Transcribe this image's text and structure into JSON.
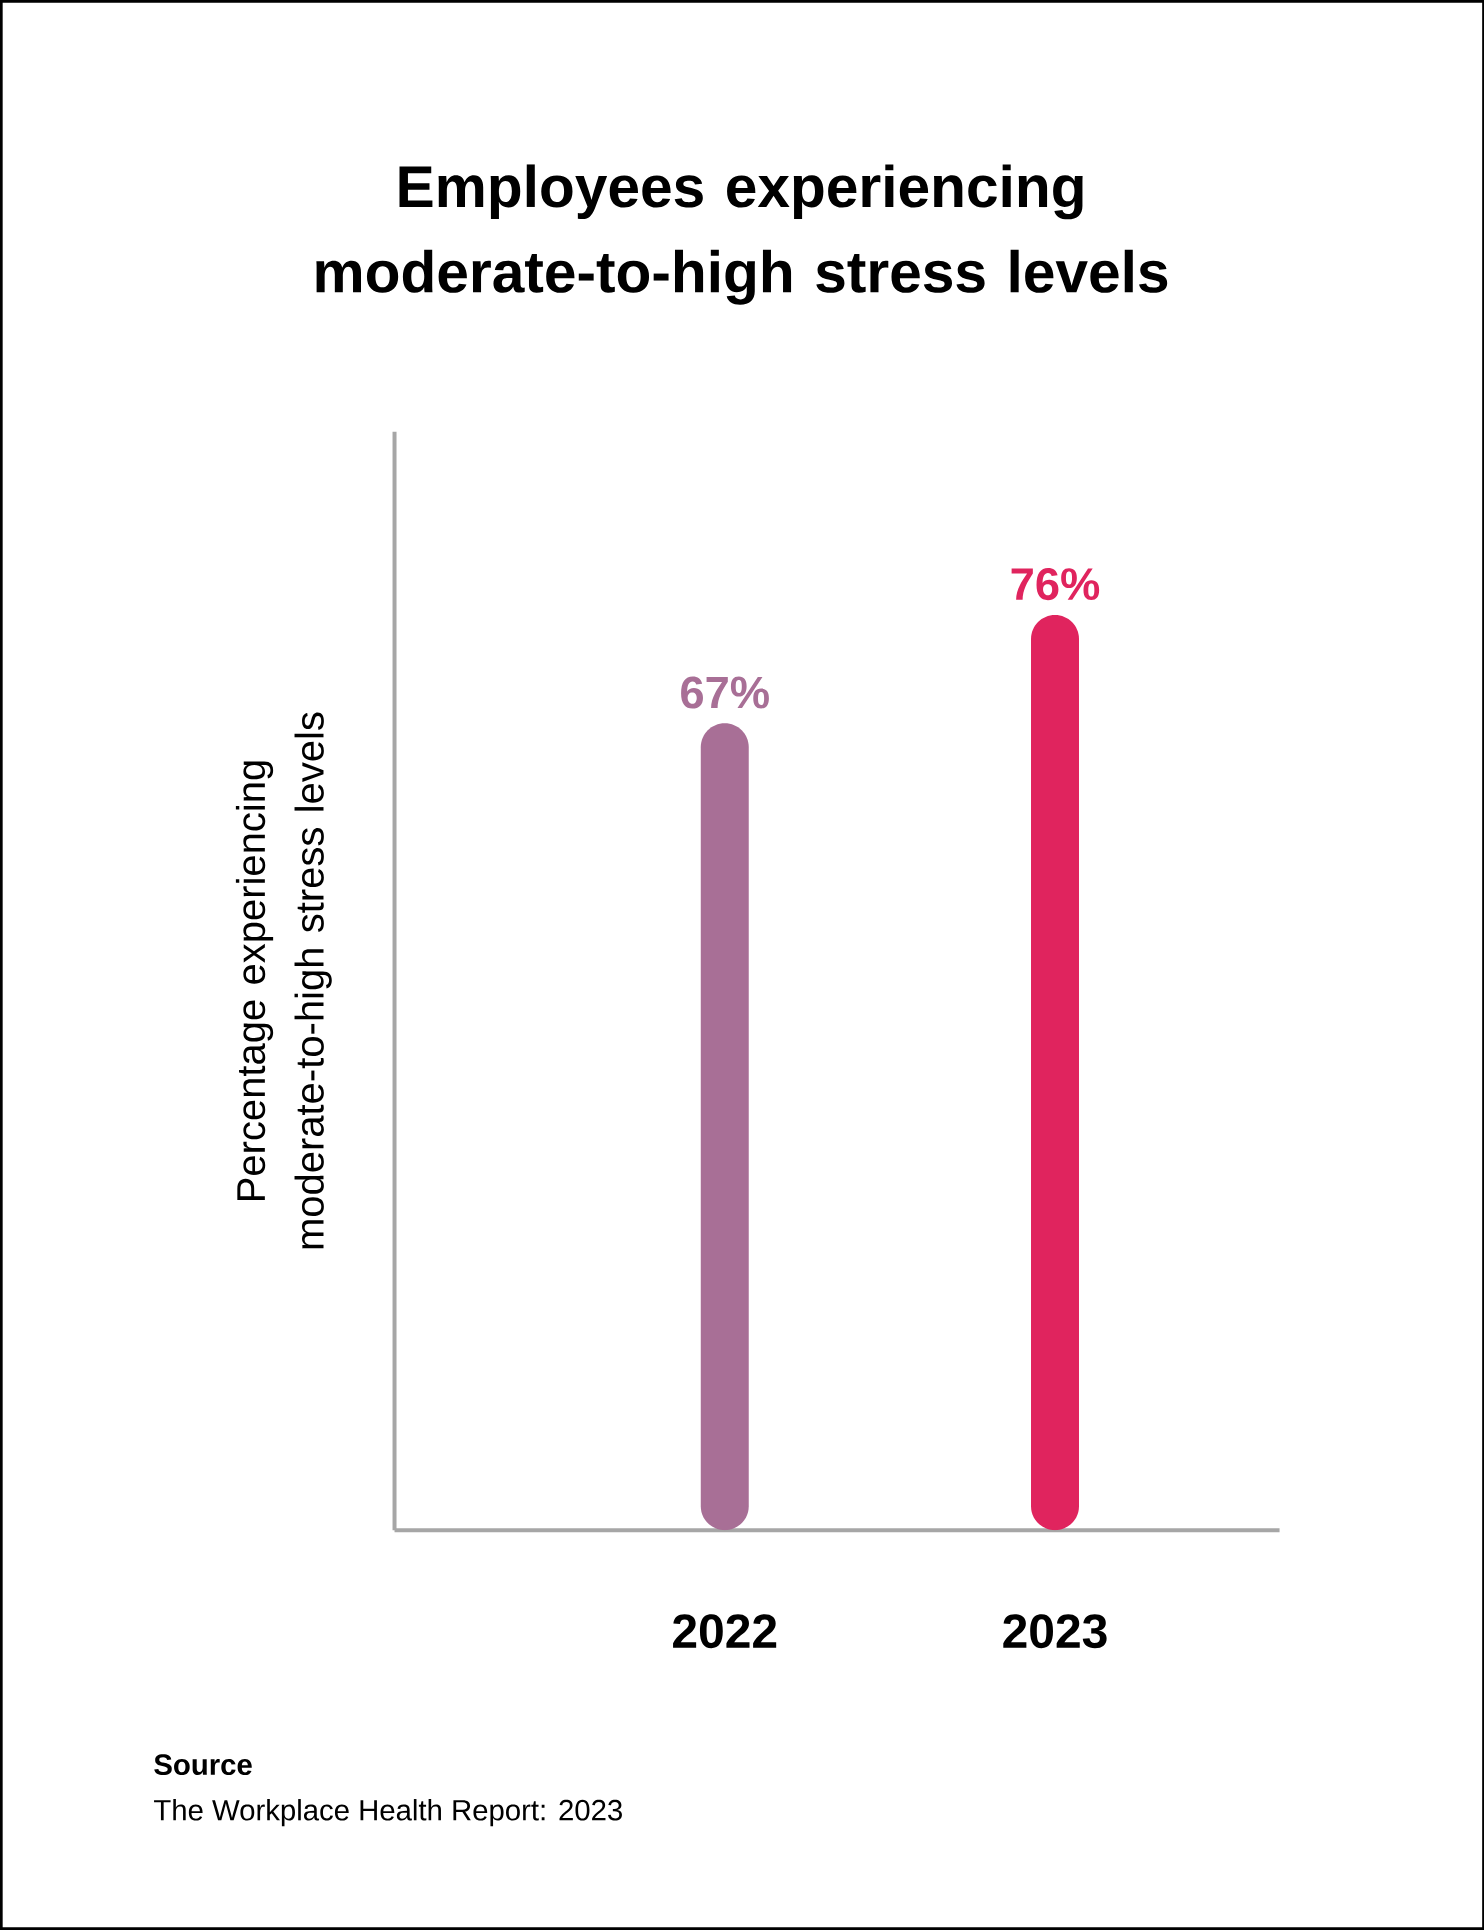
{
  "chart_data": {
    "type": "bar",
    "title": "Employees experiencing moderate-to-high stress levels",
    "ylabel": "Percentage experiencing moderate-to-high stress levels",
    "categories": [
      "2022",
      "2023"
    ],
    "values": [
      67,
      76
    ],
    "value_labels": [
      "67%",
      "76%"
    ],
    "colors": [
      "#a86f96",
      "#e0245e"
    ],
    "annotations": [
      "**Source**",
      "The Workplace Health Report: 2023"
    ]
  }
}
